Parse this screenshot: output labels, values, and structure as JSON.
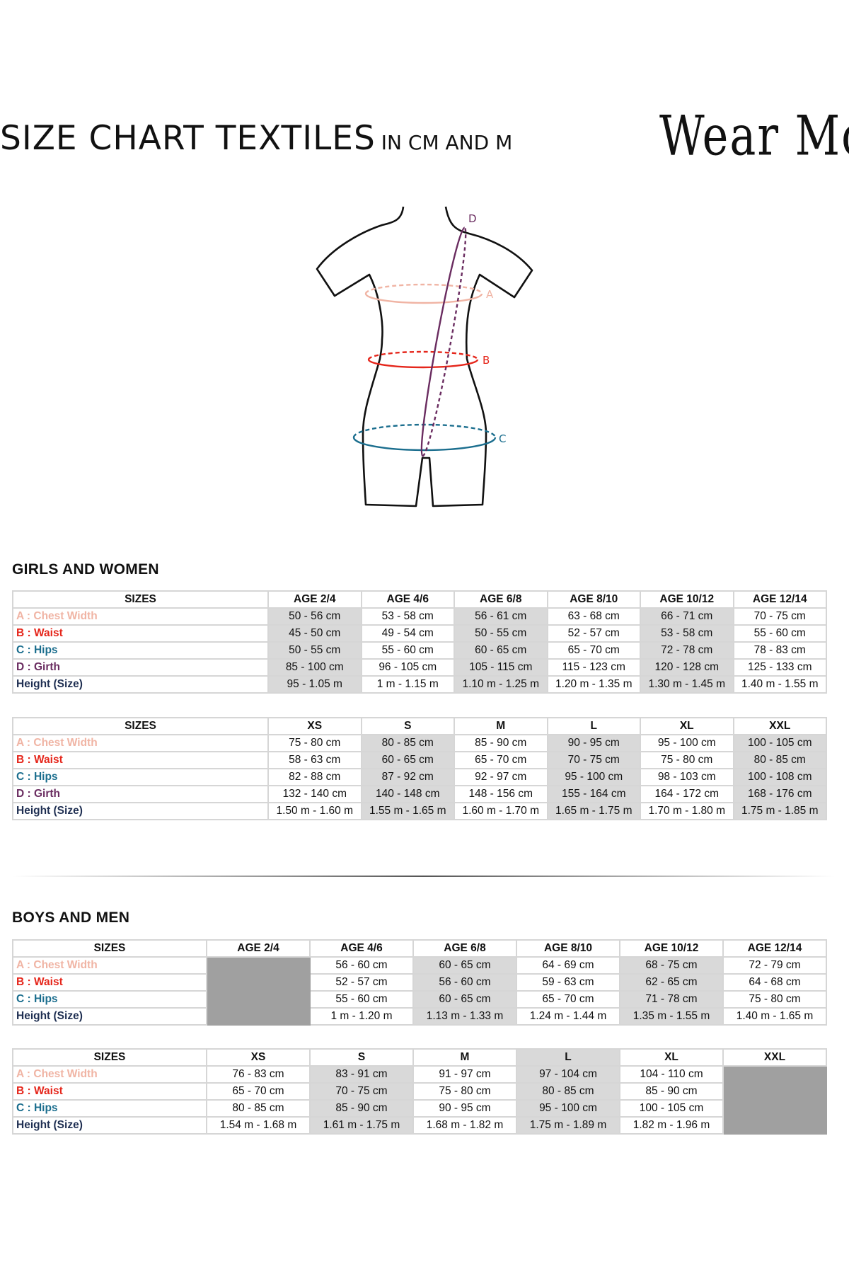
{
  "header": {
    "title": "SIZE CHART TEXTILES",
    "subtitle": "IN CM AND M",
    "logo_text": "Wear Moi"
  },
  "figure": {
    "labels": {
      "A": "A",
      "B": "B",
      "C": "C",
      "D": "D"
    }
  },
  "colors": {
    "chest": "#f0b4a4",
    "waist": "#e5261b",
    "hips": "#1b6e8e",
    "girth": "#6a2c60",
    "height": "#1f2f52",
    "shade_light": "#d9d9d9",
    "shade_dark": "#a0a0a0"
  },
  "sections": [
    {
      "title": "GIRLS AND WOMEN",
      "tables": [
        {
          "header": [
            "SIZES",
            "AGE 2/4",
            "AGE 4/6",
            "AGE 6/8",
            "AGE 8/10",
            "AGE 10/12",
            "AGE 12/14"
          ],
          "shaded_columns": [
            1,
            3,
            5
          ],
          "shaded_header": [],
          "blocked_columns": [],
          "rows": [
            {
              "key": "chest",
              "label": "A : Chest Width",
              "values": [
                "50 - 56 cm",
                "53 - 58 cm",
                "56 - 61 cm",
                "63 - 68 cm",
                "66 - 71 cm",
                "70 - 75 cm"
              ]
            },
            {
              "key": "waist",
              "label": "B : Waist",
              "values": [
                "45 - 50 cm",
                "49  - 54 cm",
                "50 - 55 cm",
                "52 - 57 cm",
                "53 - 58 cm",
                "55 - 60 cm"
              ]
            },
            {
              "key": "hips",
              "label": "C : Hips",
              "values": [
                "50 - 55 cm",
                "55 - 60 cm",
                "60 - 65 cm",
                "65 - 70 cm",
                "72 - 78 cm",
                "78 - 83 cm"
              ]
            },
            {
              "key": "girth",
              "label": "D : Girth",
              "values": [
                "85 - 100 cm",
                "96 - 105 cm",
                "105 - 115  cm",
                "115 - 123 cm",
                "120 - 128 cm",
                "125 - 133 cm"
              ]
            },
            {
              "key": "height",
              "label": "Height (Size)",
              "values": [
                "95 - 1.05 m",
                "1 m - 1.15 m",
                "1.10 m - 1.25 m",
                "1.20 m - 1.35 m",
                "1.30 m - 1.45 m",
                "1.40 m - 1.55 m"
              ]
            }
          ]
        },
        {
          "header": [
            "SIZES",
            "XS",
            "S",
            "M",
            "L",
            "XL",
            "XXL"
          ],
          "shaded_columns": [
            2,
            4,
            6
          ],
          "shaded_header": [],
          "blocked_columns": [],
          "rows": [
            {
              "key": "chest",
              "label": "A : Chest Width",
              "values": [
                "75 - 80 cm",
                "80 - 85 cm",
                "85 - 90 cm",
                "90 - 95 cm",
                "95 - 100 cm",
                "100 - 105 cm"
              ]
            },
            {
              "key": "waist",
              "label": "B : Waist",
              "values": [
                "58 - 63 cm",
                "60 - 65 cm",
                "65 - 70 cm",
                "70 - 75 cm",
                "75 - 80 cm",
                "80 - 85 cm"
              ]
            },
            {
              "key": "hips",
              "label": "C : Hips",
              "values": [
                "82 - 88 cm",
                "87 - 92 cm",
                "92 - 97 cm",
                "95 - 100 cm",
                "98 - 103 cm",
                "100 - 108 cm"
              ]
            },
            {
              "key": "girth",
              "label": "D : Girth",
              "values": [
                "132 - 140 cm",
                "140 - 148 cm",
                "148 - 156 cm",
                "155 - 164 cm",
                "164 - 172 cm",
                "168 - 176 cm"
              ]
            },
            {
              "key": "height",
              "label": "Height (Size)",
              "values": [
                "1.50 m - 1.60 m",
                "1.55 m - 1.65 m",
                "1.60 m - 1.70 m",
                "1.65 m - 1.75 m",
                "1.70 m - 1.80 m",
                "1.75 m - 1.85 m"
              ]
            }
          ]
        }
      ]
    },
    {
      "title": "BOYS AND MEN",
      "tables": [
        {
          "header": [
            "SIZES",
            "AGE 2/4",
            "AGE 4/6",
            "AGE 6/8",
            "AGE 8/10",
            "AGE 10/12",
            "AGE 12/14"
          ],
          "shaded_columns": [
            3,
            5
          ],
          "shaded_header": [],
          "blocked_columns": [
            1
          ],
          "rows": [
            {
              "key": "chest",
              "label": "A : Chest Width",
              "values": [
                "",
                "56 - 60 cm",
                "60 - 65 cm",
                "64 - 69 cm",
                "68 - 75 cm",
                "72 - 79 cm"
              ]
            },
            {
              "key": "waist",
              "label": "B : Waist",
              "values": [
                "",
                "52  - 57 cm",
                "56 - 60 cm",
                "59 - 63 cm",
                "62 - 65 cm",
                "64 - 68 cm"
              ]
            },
            {
              "key": "hips",
              "label": "C : Hips",
              "values": [
                "",
                "55 - 60 cm",
                "60 - 65 cm",
                "65 - 70 cm",
                "71 - 78 cm",
                "75 - 80 cm"
              ]
            },
            {
              "key": "height",
              "label": "Height (Size)",
              "values": [
                "",
                "1 m - 1.20 m",
                "1.13 m - 1.33 m",
                "1.24 m - 1.44 m",
                "1.35 m - 1.55 m",
                "1.40 m - 1.65 m"
              ]
            }
          ]
        },
        {
          "header": [
            "SIZES",
            "XS",
            "S",
            "M",
            "L",
            "XL",
            "XXL"
          ],
          "shaded_columns": [
            2,
            4
          ],
          "shaded_header": [
            4
          ],
          "blocked_columns": [
            6
          ],
          "rows": [
            {
              "key": "chest",
              "label": "A : Chest Width",
              "values": [
                "76 - 83 cm",
                "83 - 91 cm",
                "91 - 97 cm",
                "97 - 104 cm",
                "104 - 110 cm",
                ""
              ]
            },
            {
              "key": "waist",
              "label": "B : Waist",
              "values": [
                "65 - 70 cm",
                "70 - 75 cm",
                "75 - 80 cm",
                "80 - 85 cm",
                "85 - 90 cm",
                ""
              ]
            },
            {
              "key": "hips",
              "label": "C : Hips",
              "values": [
                "80 - 85 cm",
                "85 - 90 cm",
                "90 - 95 cm",
                "95 - 100 cm",
                "100 - 105 cm",
                ""
              ]
            },
            {
              "key": "height",
              "label": "Height (Size)",
              "values": [
                "1.54 m - 1.68 m",
                "1.61 m - 1.75 m",
                "1.68 m - 1.82 m",
                "1.75 m - 1.89 m",
                "1.82 m - 1.96 m",
                ""
              ]
            }
          ]
        }
      ]
    }
  ]
}
